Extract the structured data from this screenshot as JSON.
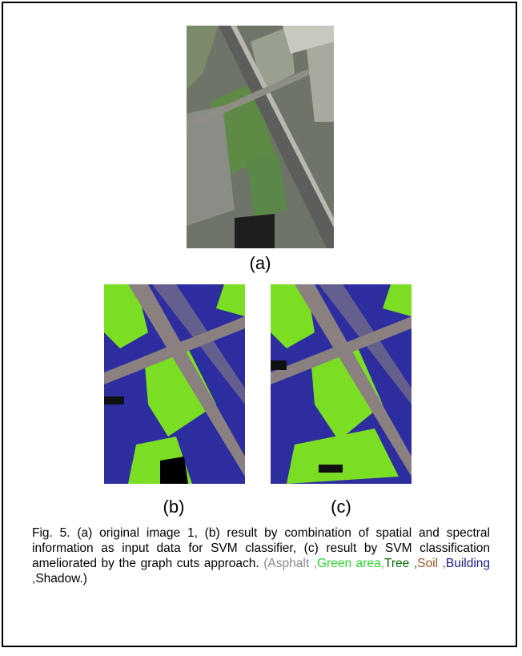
{
  "figure": {
    "images": [
      {
        "label": "(a)"
      },
      {
        "label": "(b)"
      },
      {
        "label": "(c)"
      }
    ],
    "caption": {
      "text": "Fig. 5. (a) original image 1, (b) result by combination of spatial and spectral information as input data for SVM classifier, (c) result by SVM classification ameliorated by the graph cuts approach.",
      "legend": [
        {
          "text": "(Asphalt ,",
          "color": "#8a8a8a"
        },
        {
          "text": "Green area,",
          "color": "#2bd62b"
        },
        {
          "text": "Tree ,",
          "color": "#0a6a0a"
        },
        {
          "text": "Soil ,",
          "color": "#a0521e"
        },
        {
          "text": "Building ,",
          "color": "#1a1a8c"
        },
        {
          "text": "Shadow.)",
          "color": "#000000"
        }
      ]
    }
  }
}
